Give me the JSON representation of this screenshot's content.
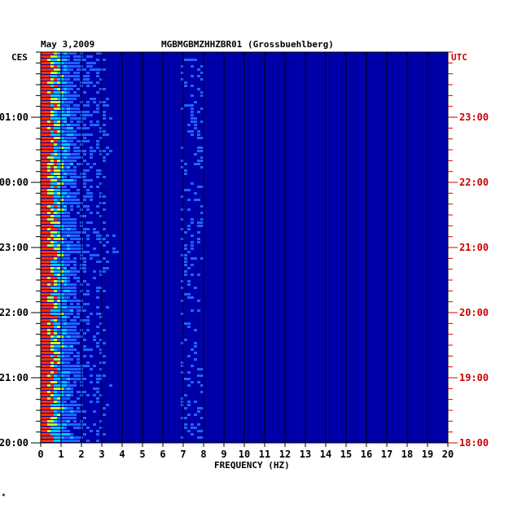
{
  "header": {
    "date": "May 3,2009",
    "station": "MGBMGBMZHHZBR01 (Grossbuehlberg)",
    "left_zone": "CES",
    "right_zone": "UTC",
    "corner_mark": "*"
  },
  "chart_data": {
    "type": "heatmap",
    "title": "MGBMGBMZHHZBR01 (Grossbuehlberg)",
    "xlabel": "FREQUENCY (HZ)",
    "xlim": [
      0,
      20
    ],
    "x_ticks": [
      0,
      1,
      2,
      3,
      4,
      5,
      6,
      7,
      8,
      9,
      10,
      11,
      12,
      13,
      14,
      15,
      16,
      17,
      18,
      19,
      20
    ],
    "left_time_labels": [
      "01:00",
      "00:00",
      "23:00",
      "22:00",
      "21:00",
      "20:00"
    ],
    "right_time_labels": [
      "23:00",
      "22:00",
      "21:00",
      "20:00",
      "19:00",
      "18:00"
    ],
    "colors": {
      "background": "#0000a8",
      "low": "#0014d0",
      "mid": "#1e64ff",
      "high": "#00c8ff",
      "peak": "#c8ff32",
      "max": "#ff3000",
      "left_axis_text": "#000000",
      "right_axis_text": "#cc0000"
    }
  }
}
